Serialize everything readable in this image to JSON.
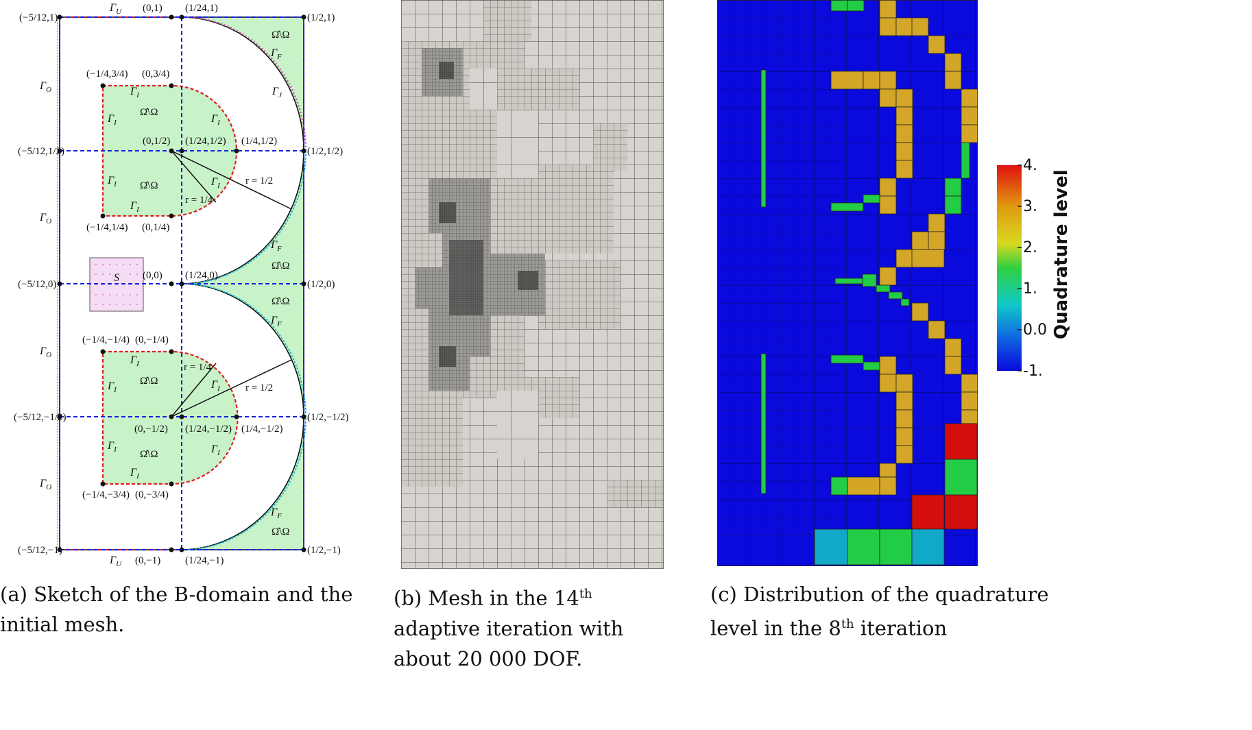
{
  "captions": {
    "a": "(a) Sketch of the B-domain and the initial mesh.",
    "b_prefix": "(b) Mesh in the 14",
    "b_sup": "th",
    "b_suffix": " adaptive iteration with about 20 000 DOF.",
    "c_prefix": "(c) Distribution of the quadrature level in the 8",
    "c_sup": "th",
    "c_suffix": " iteration"
  },
  "sketch": {
    "top_labels": [
      "Γ_U",
      "(0,1)",
      "(1/24,1)",
      "(−5/12,1)",
      "(1/2,1)"
    ],
    "points": {
      "tl": "(−5/12,1)",
      "t0": "(0,1)",
      "t124": "(1/24,1)",
      "tr": "(1/2,1)",
      "ml": "(−5/12,1/2)",
      "m0": "(0,1/2)",
      "m124": "(1/24,1/2)",
      "m14": "(1/4,1/2)",
      "mr": "(1/2,1/2)",
      "u1": "(−1/4,3/4)",
      "u2": "(0,3/4)",
      "u3": "(−1/4,1/4)",
      "u4": "(0,1/4)",
      "cl": "(−5/12,0)",
      "c0": "(0,0)",
      "c124": "(1/24,0)",
      "cr": "(1/2,0)",
      "l1": "(−1/4,−1/4)",
      "l2": "(0,−1/4)",
      "l3": "(−1/4,−3/4)",
      "l4": "(0,−3/4)",
      "nl": "(−5/12,−1/2)",
      "n0": "(0,−1/2)",
      "n124": "(1/24,−1/2)",
      "n14": "(1/4,−1/2)",
      "nr": "(1/2,−1/2)",
      "bl": "(−5/12,−1)",
      "b0": "(0,−1)",
      "b124": "(1/24,−1)",
      "br": "(1/2,−1)"
    },
    "gammas": {
      "gU": "Γ",
      "gU_sub": "U",
      "gO": "Γ",
      "gO_sub": "O",
      "gI": "Γ",
      "gI_sub": "I",
      "gF": "Γ",
      "gF_sub": "F",
      "gJ": "Γ",
      "gJ_sub": "J"
    },
    "region": "Ω̂\\Ω",
    "square": "S",
    "r_half": "r = 1/2",
    "r_quarter": "r = 1/4"
  },
  "colorbar": {
    "title": "Quadrature level",
    "ticks": [
      "4.",
      "3.",
      "2.",
      "1.",
      "0.0",
      "-1."
    ],
    "colors": [
      "#d01010",
      "#d4a017",
      "#2ecc40",
      "#12b8c8",
      "#0a0adc"
    ]
  },
  "colors": {
    "blue_bg": "#0a0adc",
    "gold": "#d4a628",
    "green": "#22cc44",
    "red": "#d40d0d",
    "cyan": "#12a8c8",
    "mesh_fill": "#d7d4cf",
    "domain_fill": "#c8f3c8"
  }
}
